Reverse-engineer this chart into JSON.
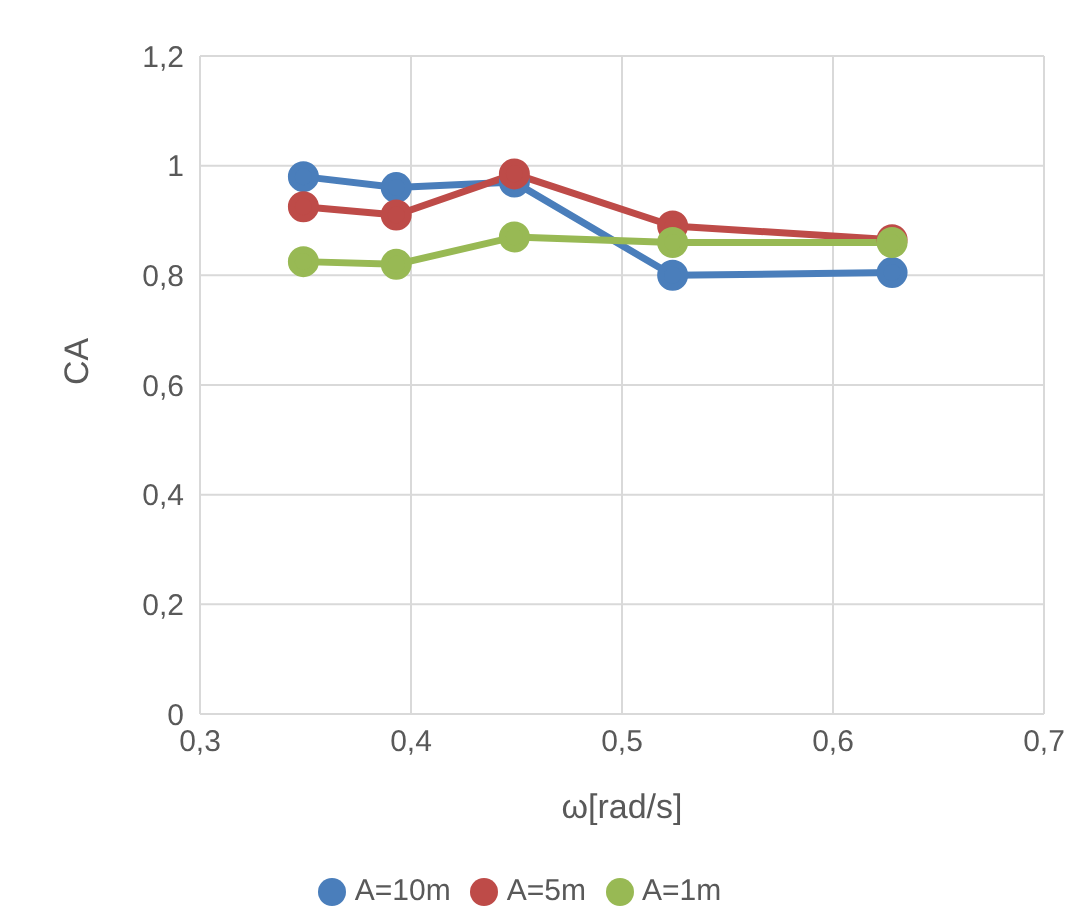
{
  "chart_data": {
    "type": "line",
    "xlabel": "ω[rad/s]",
    "ylabel": "CA",
    "x": [
      0.349,
      0.393,
      0.449,
      0.524,
      0.628
    ],
    "series": [
      {
        "name": "A=10m",
        "color": "#4a7ebb",
        "values": [
          0.98,
          0.96,
          0.97,
          0.8,
          0.805
        ]
      },
      {
        "name": "A=5m",
        "color": "#be4b48",
        "values": [
          0.925,
          0.91,
          0.985,
          0.89,
          0.865
        ]
      },
      {
        "name": "A=1m",
        "color": "#98b954",
        "values": [
          0.825,
          0.82,
          0.87,
          0.86,
          0.86
        ]
      }
    ],
    "xlim": [
      0.3,
      0.7
    ],
    "xticks": [
      {
        "value": 0.3,
        "label": "0,3"
      },
      {
        "value": 0.4,
        "label": "0,4"
      },
      {
        "value": 0.5,
        "label": "0,5"
      },
      {
        "value": 0.6,
        "label": "0,6"
      },
      {
        "value": 0.7,
        "label": "0,7"
      }
    ],
    "ylim": [
      0,
      1.2
    ],
    "yticks": [
      {
        "value": 0,
        "label": "0"
      },
      {
        "value": 0.2,
        "label": "0,2"
      },
      {
        "value": 0.4,
        "label": "0,4"
      },
      {
        "value": 0.6,
        "label": "0,6"
      },
      {
        "value": 0.8,
        "label": "0,8"
      },
      {
        "value": 1,
        "label": "1"
      },
      {
        "value": 1.2,
        "label": "1,2"
      }
    ],
    "grid": true,
    "legend": "bottom",
    "marker": "circle",
    "line_style": "solid"
  }
}
